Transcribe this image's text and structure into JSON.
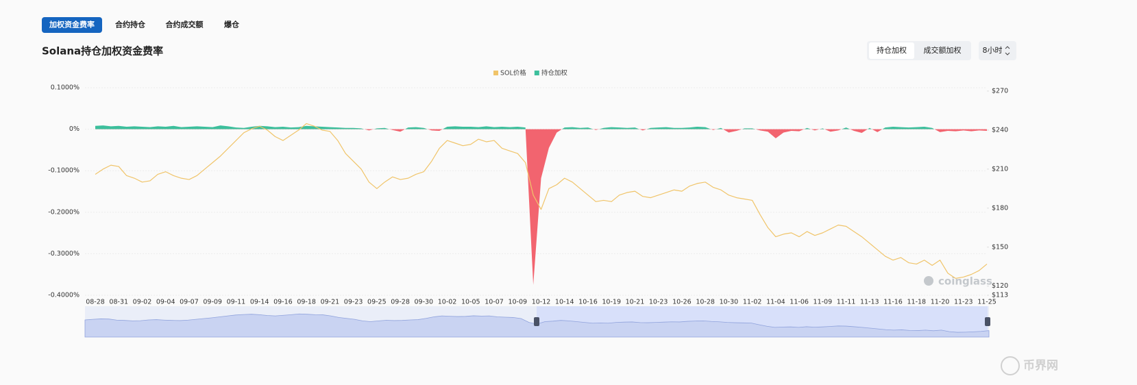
{
  "tabs": [
    "加权资金费率",
    "合约持仓",
    "合约成交额",
    "爆仓"
  ],
  "weight_buttons": [
    "持仓加权",
    "成交额加权"
  ],
  "interval": "8小时",
  "watermark": "coinglass",
  "site_logo": "币界网",
  "chart_data": {
    "type": "line",
    "title": "Solana持仓加权资金费率",
    "categories": [
      "08-28",
      null,
      null,
      "08-31",
      null,
      null,
      "09-02",
      null,
      null,
      "09-04",
      null,
      null,
      "09-07",
      null,
      null,
      "09-09",
      null,
      null,
      "09-11",
      null,
      null,
      "09-14",
      null,
      null,
      "09-16",
      null,
      null,
      "09-18",
      null,
      null,
      "09-21",
      null,
      null,
      "09-23",
      null,
      null,
      "09-25",
      null,
      null,
      "09-28",
      null,
      null,
      "09-30",
      null,
      null,
      "10-02",
      null,
      null,
      "10-05",
      null,
      null,
      "10-07",
      null,
      null,
      "10-09",
      null,
      null,
      "10-12",
      null,
      null,
      "10-14",
      null,
      null,
      "10-16",
      null,
      null,
      "10-19",
      null,
      null,
      "10-21",
      null,
      null,
      "10-23",
      null,
      null,
      "10-26",
      null,
      null,
      "10-28",
      null,
      null,
      "10-30",
      null,
      null,
      "11-02",
      null,
      null,
      "11-04",
      null,
      null,
      "11-06",
      null,
      null,
      "11-09",
      null,
      null,
      "11-11",
      null,
      null,
      "11-13",
      null,
      null,
      "11-16",
      null,
      null,
      "11-18",
      null,
      null,
      "11-20",
      null,
      null,
      "11-23",
      null,
      null,
      "11-25"
    ],
    "series": [
      {
        "name": "SOL价格",
        "color": "#f0c469",
        "axis": "y2",
        "values": [
          206,
          210,
          213,
          212,
          205,
          203,
          200,
          201,
          206,
          208,
          205,
          203,
          202,
          205,
          210,
          215,
          220,
          226,
          232,
          238,
          241,
          243,
          240,
          235,
          232,
          236,
          240,
          245,
          243,
          240,
          239,
          232,
          222,
          216,
          210,
          200,
          195,
          200,
          204,
          202,
          203,
          206,
          208,
          216,
          226,
          232,
          230,
          228,
          229,
          233,
          231,
          232,
          226,
          224,
          222,
          215,
          190,
          179,
          195,
          198,
          203,
          200,
          195,
          190,
          185,
          186,
          185,
          190,
          192,
          193,
          189,
          188,
          190,
          192,
          194,
          193,
          197,
          199,
          200,
          196,
          194,
          190,
          188,
          187,
          186,
          175,
          165,
          158,
          160,
          161,
          158,
          162,
          159,
          161,
          164,
          167,
          166,
          162,
          158,
          153,
          148,
          143,
          140,
          142,
          138,
          137,
          140,
          136,
          140,
          130,
          126,
          127,
          129,
          132,
          137
        ]
      },
      {
        "name": "持仓加权",
        "color": "#3cbf9c",
        "negative_color": "#f2646f",
        "type": "area",
        "values": [
          0.008,
          0.009,
          0.007,
          0.008,
          0.006,
          0.007,
          0.006,
          0.005,
          0.007,
          0.006,
          0.008,
          0.005,
          0.006,
          0.007,
          0.006,
          0.005,
          0.009,
          0.007,
          0.004,
          0.003,
          0.006,
          0.008,
          0.007,
          0.005,
          0.006,
          0.004,
          0.005,
          0.008,
          0.007,
          0.006,
          0.005,
          0.004,
          0.003,
          0.003,
          0.002,
          -0.003,
          0.002,
          0.003,
          -0.002,
          -0.006,
          0.004,
          0.005,
          0.003,
          -0.003,
          -0.004,
          0.006,
          0.007,
          0.006,
          0.006,
          0.005,
          0.007,
          0.005,
          0.006,
          0.005,
          0.006,
          0.004,
          -0.375,
          -0.118,
          -0.045,
          -0.008,
          0.004,
          0.005,
          0.003,
          0.004,
          -0.002,
          0.003,
          0.005,
          0.004,
          0.003,
          0.004,
          -0.003,
          0.003,
          0.004,
          0.005,
          0.003,
          0.003,
          0.004,
          0.006,
          0.005,
          -0.002,
          0.003,
          -0.008,
          -0.004,
          0.002,
          0.002,
          -0.003,
          -0.006,
          -0.022,
          -0.008,
          -0.004,
          -0.005,
          0.003,
          -0.003,
          0.002,
          -0.006,
          -0.003,
          0.004,
          -0.004,
          -0.009,
          0.003,
          -0.007,
          0.004,
          0.006,
          0.005,
          0.004,
          0.005,
          0.006,
          0.003,
          -0.007,
          -0.004,
          -0.005,
          -0.003,
          -0.005,
          -0.003,
          -0.004
        ]
      }
    ],
    "ylim": [
      -0.4,
      0.1
    ],
    "yticks": [
      {
        "value": 0.1,
        "label": "0.1000%"
      },
      {
        "value": 0,
        "label": "0%"
      },
      {
        "value": -0.1,
        "label": "-0.1000%"
      },
      {
        "value": -0.2,
        "label": "-0.2000%"
      },
      {
        "value": -0.3,
        "label": "-0.3000%"
      },
      {
        "value": -0.4,
        "label": "-0.4000%"
      }
    ],
    "y2lim": [
      113,
      272.6
    ],
    "y2ticks": [
      {
        "value": 270,
        "label": "$270"
      },
      {
        "value": 240,
        "label": "$240"
      },
      {
        "value": 210,
        "label": "$210"
      },
      {
        "value": 180,
        "label": "$180"
      },
      {
        "value": 150,
        "label": "$150"
      },
      {
        "value": 120,
        "label": "$120"
      },
      {
        "value": 113,
        "label": "$113"
      }
    ],
    "grid": true,
    "legend": "top"
  }
}
